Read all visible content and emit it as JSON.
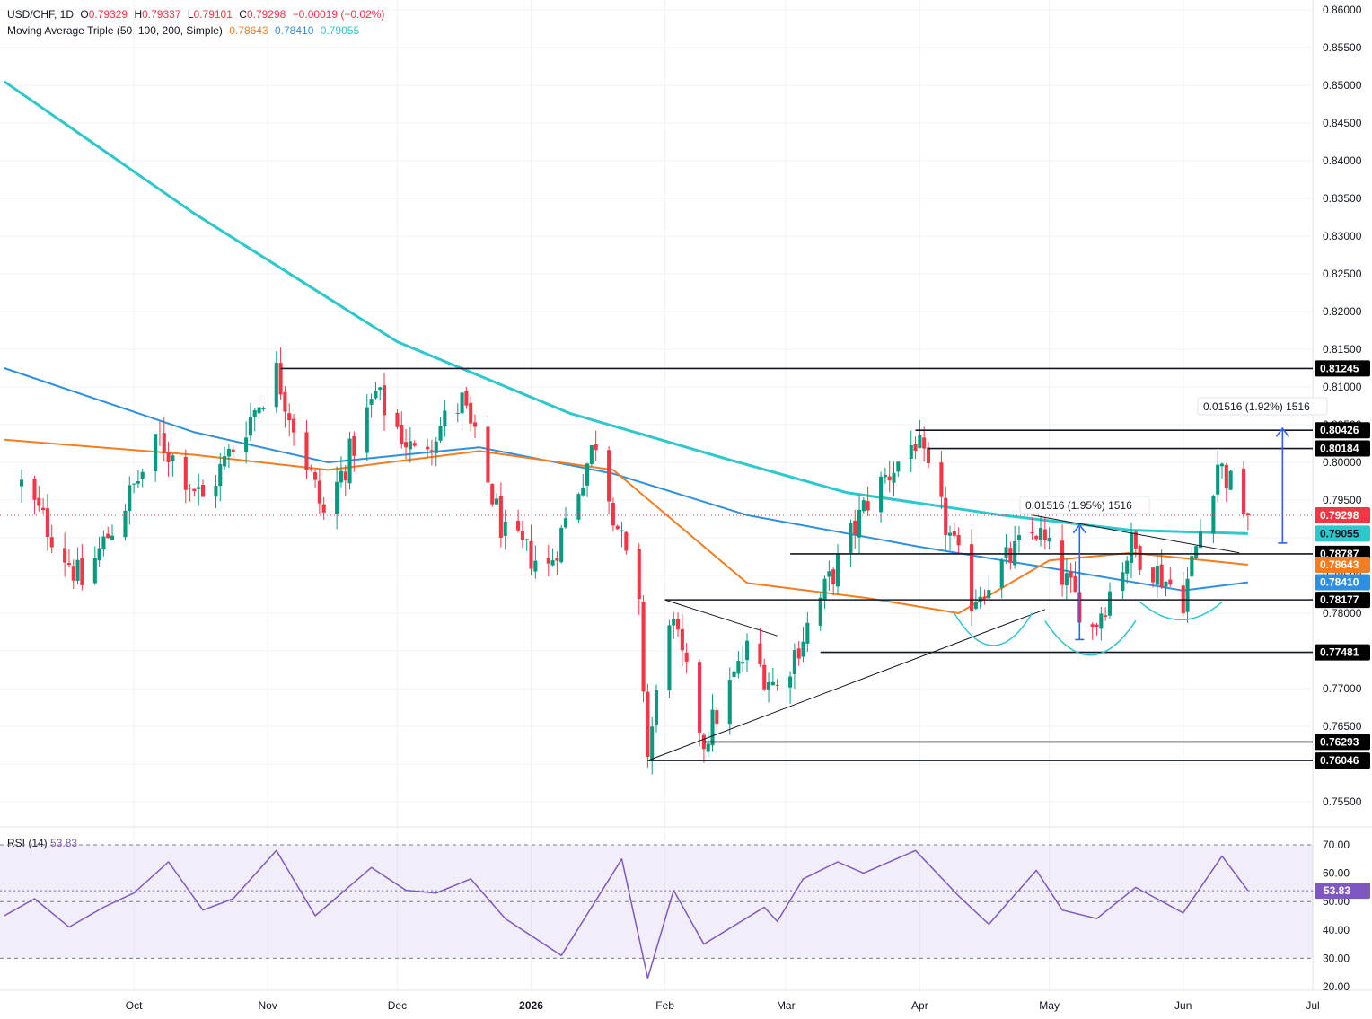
{
  "header": {
    "symbol": "USD/CHF, 1D",
    "o_label": "O",
    "o_value": "0.79329",
    "h_label": "H",
    "h_value": "0.79337",
    "l_label": "L",
    "l_value": "0.79101",
    "c_label": "C",
    "c_value": "0.79298",
    "change": "−0.00019 (−0.02%)",
    "ma_label": "Moving Average Triple (50, 100, 200, Simple)",
    "ma50_value": "0.78643",
    "ma100_value": "0.78410",
    "ma200_value": "0.79055",
    "rsi_label": "RSI (14)",
    "rsi_value": "53.83"
  },
  "colors": {
    "up": "#089981",
    "down": "#f23645",
    "ma50": "#f57c1f",
    "ma100": "#2e8fe0",
    "ma200": "#2cc8cc",
    "rsi": "#7e57c2",
    "level": "#131722",
    "measure": "#2962ff",
    "grid": "#f0f3fa"
  },
  "chart_data": [
    {
      "type": "candlestick",
      "symbol": "USD/CHF",
      "ylim": [
        0.75,
        0.86
      ],
      "y_ticks": [
        "0.75500",
        "0.76000",
        "0.76500",
        "0.77000",
        "0.77500",
        "0.78000",
        "0.78500",
        "0.79000",
        "0.79500",
        "0.80000",
        "0.80500",
        "0.81000",
        "0.81500",
        "0.82000",
        "0.82500",
        "0.83000",
        "0.83500",
        "0.84000",
        "0.84500",
        "0.85000",
        "0.85500",
        "0.86000"
      ],
      "x_ticks": [
        "Oct",
        "Nov",
        "Dec",
        "2026",
        "Feb",
        "Mar",
        "Apr",
        "May",
        "Jun",
        "Jul"
      ],
      "price_labels": {
        "last": "0.79298",
        "ma200": "0.79055",
        "ma50": "0.78643",
        "ma100": "0.78410"
      },
      "levels": [
        {
          "label": "0.81245",
          "value": 0.81245
        },
        {
          "label": "0.80426",
          "value": 0.80426
        },
        {
          "label": "0.80184",
          "value": 0.80184
        },
        {
          "label": "0.78787",
          "value": 0.78787
        },
        {
          "label": "0.78177",
          "value": 0.78177
        },
        {
          "label": "0.77481",
          "value": 0.77481
        },
        {
          "label": "0.76293",
          "value": 0.76293
        },
        {
          "label": "0.76046",
          "value": 0.76046
        }
      ],
      "annotations": [
        {
          "text": "0.01516 (1.95%) 1516",
          "from": 0.7765,
          "to": 0.7917
        },
        {
          "text": "0.01516 (1.92%) 1516",
          "from": 0.7893,
          "to": 0.8045
        }
      ],
      "key_points": [
        {
          "date": "2025-09-05",
          "close": 0.797
        },
        {
          "date": "2025-09-19",
          "close": 0.784
        },
        {
          "date": "2025-10-07",
          "close": 0.803
        },
        {
          "date": "2025-10-17",
          "close": 0.795
        },
        {
          "date": "2025-11-03",
          "close": 0.812
        },
        {
          "date": "2025-11-14",
          "close": 0.793
        },
        {
          "date": "2025-11-26",
          "close": 0.809
        },
        {
          "date": "2025-12-05",
          "close": 0.801
        },
        {
          "date": "2025-12-16",
          "close": 0.808
        },
        {
          "date": "2025-12-26",
          "close": 0.79
        },
        {
          "date": "2026-01-05",
          "close": 0.786
        },
        {
          "date": "2026-01-16",
          "close": 0.803
        },
        {
          "date": "2026-01-26",
          "close": 0.78
        },
        {
          "date": "2026-01-28",
          "close": 0.761
        },
        {
          "date": "2026-02-02",
          "close": 0.78
        },
        {
          "date": "2026-02-10",
          "close": 0.763
        },
        {
          "date": "2026-02-20",
          "close": 0.775
        },
        {
          "date": "2026-02-27",
          "close": 0.77
        },
        {
          "date": "2026-03-10",
          "close": 0.783
        },
        {
          "date": "2026-03-20",
          "close": 0.795
        },
        {
          "date": "2026-03-31",
          "close": 0.803
        },
        {
          "date": "2026-04-13",
          "close": 0.782
        },
        {
          "date": "2026-04-28",
          "close": 0.791
        },
        {
          "date": "2026-05-11",
          "close": 0.778
        },
        {
          "date": "2026-05-20",
          "close": 0.789
        },
        {
          "date": "2026-06-01",
          "close": 0.782
        },
        {
          "date": "2026-06-09",
          "close": 0.8
        },
        {
          "date": "2026-06-16",
          "close": 0.793
        }
      ],
      "ma200_points": [
        {
          "date": "2025-09-01",
          "value": 0.8505
        },
        {
          "date": "2025-10-15",
          "value": 0.833
        },
        {
          "date": "2025-12-01",
          "value": 0.816
        },
        {
          "date": "2026-01-10",
          "value": 0.8065
        },
        {
          "date": "2026-02-15",
          "value": 0.8005
        },
        {
          "date": "2026-03-15",
          "value": 0.796
        },
        {
          "date": "2026-04-20",
          "value": 0.793
        },
        {
          "date": "2026-05-20",
          "value": 0.791
        },
        {
          "date": "2026-06-16",
          "value": 0.79055
        }
      ],
      "ma100_points": [
        {
          "date": "2025-09-01",
          "value": 0.8125
        },
        {
          "date": "2025-10-15",
          "value": 0.804
        },
        {
          "date": "2025-11-15",
          "value": 0.8
        },
        {
          "date": "2025-12-20",
          "value": 0.802
        },
        {
          "date": "2026-01-20",
          "value": 0.7985
        },
        {
          "date": "2026-02-20",
          "value": 0.793
        },
        {
          "date": "2026-04-01",
          "value": 0.7888
        },
        {
          "date": "2026-05-01",
          "value": 0.786
        },
        {
          "date": "2026-06-01",
          "value": 0.783
        },
        {
          "date": "2026-06-16",
          "value": 0.7841
        }
      ],
      "ma50_points": [
        {
          "date": "2025-09-01",
          "value": 0.803
        },
        {
          "date": "2025-10-15",
          "value": 0.801
        },
        {
          "date": "2025-11-15",
          "value": 0.799
        },
        {
          "date": "2025-12-20",
          "value": 0.8015
        },
        {
          "date": "2026-01-20",
          "value": 0.799
        },
        {
          "date": "2026-02-20",
          "value": 0.784
        },
        {
          "date": "2026-03-20",
          "value": 0.782
        },
        {
          "date": "2026-04-10",
          "value": 0.78
        },
        {
          "date": "2026-05-01",
          "value": 0.787
        },
        {
          "date": "2026-05-20",
          "value": 0.788
        },
        {
          "date": "2026-06-16",
          "value": 0.78643
        }
      ]
    },
    {
      "type": "line",
      "name": "RSI (14)",
      "ylim": [
        20,
        72
      ],
      "y_ticks": [
        "20.00",
        "30.00",
        "40.00",
        "50.00",
        "60.00",
        "70.00"
      ],
      "bands": [
        30,
        70
      ],
      "midline": 50,
      "value_label": "53.83",
      "points": [
        {
          "date": "2025-09-01",
          "value": 45
        },
        {
          "date": "2025-09-08",
          "value": 51
        },
        {
          "date": "2025-09-16",
          "value": 41
        },
        {
          "date": "2025-09-24",
          "value": 48
        },
        {
          "date": "2025-10-01",
          "value": 53
        },
        {
          "date": "2025-10-09",
          "value": 64
        },
        {
          "date": "2025-10-17",
          "value": 47
        },
        {
          "date": "2025-10-24",
          "value": 51
        },
        {
          "date": "2025-11-03",
          "value": 68
        },
        {
          "date": "2025-11-12",
          "value": 45
        },
        {
          "date": "2025-11-25",
          "value": 62
        },
        {
          "date": "2025-12-03",
          "value": 54
        },
        {
          "date": "2025-12-10",
          "value": 53
        },
        {
          "date": "2025-12-18",
          "value": 58
        },
        {
          "date": "2025-12-26",
          "value": 44
        },
        {
          "date": "2026-01-08",
          "value": 31
        },
        {
          "date": "2026-01-22",
          "value": 65
        },
        {
          "date": "2026-01-28",
          "value": 23
        },
        {
          "date": "2026-02-03",
          "value": 54
        },
        {
          "date": "2026-02-10",
          "value": 35
        },
        {
          "date": "2026-02-24",
          "value": 48
        },
        {
          "date": "2026-02-27",
          "value": 43
        },
        {
          "date": "2026-03-05",
          "value": 58
        },
        {
          "date": "2026-03-13",
          "value": 64
        },
        {
          "date": "2026-03-19",
          "value": 60
        },
        {
          "date": "2026-03-31",
          "value": 68
        },
        {
          "date": "2026-04-10",
          "value": 52
        },
        {
          "date": "2026-04-17",
          "value": 42
        },
        {
          "date": "2026-04-28",
          "value": 61
        },
        {
          "date": "2026-05-04",
          "value": 47
        },
        {
          "date": "2026-05-12",
          "value": 44
        },
        {
          "date": "2026-05-21",
          "value": 55
        },
        {
          "date": "2026-06-01",
          "value": 46
        },
        {
          "date": "2026-06-10",
          "value": 66
        },
        {
          "date": "2026-06-16",
          "value": 53.83
        }
      ]
    }
  ]
}
